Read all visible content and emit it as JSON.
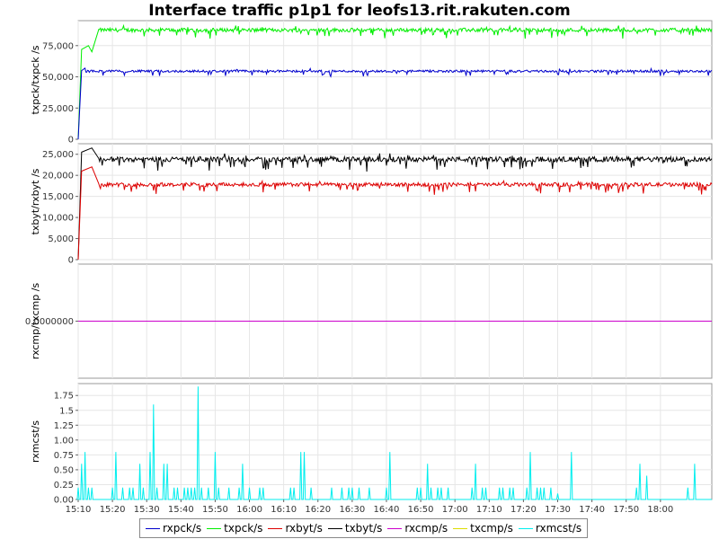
{
  "title": "Interface traffic p1p1 for leofs13.rit.rakuten.com",
  "x_ticks": [
    "15:10",
    "15:20",
    "15:30",
    "15:40",
    "15:50",
    "16:00",
    "16:10",
    "16:20",
    "16:30",
    "16:40",
    "16:50",
    "17:00",
    "17:10",
    "17:20",
    "17:30",
    "17:40",
    "17:50",
    "18:00"
  ],
  "legend": [
    {
      "name": "rxpck/s",
      "color": "#0000cc"
    },
    {
      "name": "txpck/s",
      "color": "#00ee00"
    },
    {
      "name": "rxbyt/s",
      "color": "#dd0000"
    },
    {
      "name": "txbyt/s",
      "color": "#000000"
    },
    {
      "name": "rxcmp/s",
      "color": "#cc00cc"
    },
    {
      "name": "txcmp/s",
      "color": "#dddd00"
    },
    {
      "name": "rxmcst/s",
      "color": "#00eeee"
    }
  ],
  "chart_data": [
    {
      "type": "line",
      "ylabel": "txpck/txpck /s",
      "ylim": [
        0,
        95000
      ],
      "y_ticks": [
        {
          "v": 0,
          "label": "0"
        },
        {
          "v": 25000,
          "label": "25,000"
        },
        {
          "v": 50000,
          "label": "50,000"
        },
        {
          "v": 75000,
          "label": "75,000"
        }
      ],
      "x_range": [
        "15:10",
        "18:15"
      ],
      "series": [
        {
          "name": "txpck/s",
          "color": "#00ee00",
          "base": 87500,
          "noise": 1500,
          "dips": 6000,
          "ramp": [
            [
              "15:10",
              0
            ],
            [
              "15:11",
              72000
            ],
            [
              "15:13",
              75000
            ],
            [
              "15:14",
              70000
            ],
            [
              "15:16",
              88000
            ]
          ]
        },
        {
          "name": "rxpck/s",
          "color": "#0000cc",
          "base": 54500,
          "noise": 900,
          "dips": 4000,
          "ramp": [
            [
              "15:10",
              0
            ],
            [
              "15:11",
              55000
            ],
            [
              "15:12",
              57000
            ]
          ]
        }
      ]
    },
    {
      "type": "line",
      "ylabel": "txbyt/rxbyt /s",
      "ylim": [
        0,
        27500
      ],
      "y_ticks": [
        {
          "v": 0,
          "label": "0"
        },
        {
          "v": 5000,
          "label": "5,000"
        },
        {
          "v": 10000,
          "label": "10,000"
        },
        {
          "v": 15000,
          "label": "15,000"
        },
        {
          "v": 20000,
          "label": "20,000"
        },
        {
          "v": 25000,
          "label": "25,000"
        }
      ],
      "x_range": [
        "15:10",
        "18:15"
      ],
      "series": [
        {
          "name": "txbyt/s",
          "color": "#000000",
          "base": 23800,
          "noise": 600,
          "dips": 2500,
          "ramp": [
            [
              "15:10",
              0
            ],
            [
              "15:11",
              25500
            ],
            [
              "15:14",
              26500
            ],
            [
              "15:16",
              24000
            ]
          ]
        },
        {
          "name": "rxbyt/s",
          "color": "#dd0000",
          "base": 17800,
          "noise": 450,
          "dips": 2000,
          "ramp": [
            [
              "15:10",
              0
            ],
            [
              "15:11",
              21000
            ],
            [
              "15:14",
              22000
            ],
            [
              "15:16",
              18000
            ]
          ]
        }
      ]
    },
    {
      "type": "line",
      "ylabel": "rxcmp/txcmp /s",
      "ylim": [
        -1,
        1
      ],
      "y_ticks": [
        {
          "v": 0,
          "label": "0.0000000"
        }
      ],
      "x_range": [
        "15:10",
        "18:15"
      ],
      "series": [
        {
          "name": "rxcmp/s",
          "color": "#cc00cc",
          "constant": 0
        }
      ]
    },
    {
      "type": "line",
      "ylabel": "rxmcst/s",
      "ylim": [
        0,
        1.95
      ],
      "y_ticks": [
        {
          "v": 0,
          "label": "0.00"
        },
        {
          "v": 0.25,
          "label": "0.25"
        },
        {
          "v": 0.5,
          "label": "0.50"
        },
        {
          "v": 0.75,
          "label": "0.75"
        },
        {
          "v": 1.0,
          "label": "1.00"
        },
        {
          "v": 1.25,
          "label": "1.25"
        },
        {
          "v": 1.5,
          "label": "1.5"
        },
        {
          "v": 1.75,
          "label": "1.75"
        }
      ],
      "x_range": [
        "15:10",
        "18:15"
      ],
      "series": [
        {
          "name": "rxmcst/s",
          "color": "#00eeee",
          "spikes": [
            [
              "15:10",
              0.2
            ],
            [
              "15:11",
              0.6
            ],
            [
              "15:12",
              0.8
            ],
            [
              "15:13",
              0.2
            ],
            [
              "15:14",
              0.2
            ],
            [
              "15:20",
              0.2
            ],
            [
              "15:21",
              0.8
            ],
            [
              "15:23",
              0.2
            ],
            [
              "15:25",
              0.2
            ],
            [
              "15:26",
              0.2
            ],
            [
              "15:28",
              0.6
            ],
            [
              "15:29",
              0.2
            ],
            [
              "15:31",
              0.8
            ],
            [
              "15:32",
              1.6
            ],
            [
              "15:33",
              0.2
            ],
            [
              "15:35",
              0.6
            ],
            [
              "15:36",
              0.6
            ],
            [
              "15:38",
              0.2
            ],
            [
              "15:39",
              0.2
            ],
            [
              "15:41",
              0.2
            ],
            [
              "15:42",
              0.2
            ],
            [
              "15:43",
              0.2
            ],
            [
              "15:44",
              0.2
            ],
            [
              "15:45",
              1.9
            ],
            [
              "15:46",
              0.2
            ],
            [
              "15:48",
              0.2
            ],
            [
              "15:50",
              0.8
            ],
            [
              "15:51",
              0.2
            ],
            [
              "15:54",
              0.2
            ],
            [
              "15:57",
              0.2
            ],
            [
              "15:58",
              0.6
            ],
            [
              "16:00",
              0.2
            ],
            [
              "16:03",
              0.2
            ],
            [
              "16:04",
              0.2
            ],
            [
              "16:12",
              0.2
            ],
            [
              "16:13",
              0.2
            ],
            [
              "16:15",
              0.8
            ],
            [
              "16:16",
              0.8
            ],
            [
              "16:18",
              0.2
            ],
            [
              "16:24",
              0.2
            ],
            [
              "16:27",
              0.2
            ],
            [
              "16:29",
              0.2
            ],
            [
              "16:30",
              0.2
            ],
            [
              "16:32",
              0.2
            ],
            [
              "16:35",
              0.2
            ],
            [
              "16:40",
              0.2
            ],
            [
              "16:41",
              0.8
            ],
            [
              "16:49",
              0.2
            ],
            [
              "16:50",
              0.2
            ],
            [
              "16:52",
              0.6
            ],
            [
              "16:53",
              0.2
            ],
            [
              "16:55",
              0.2
            ],
            [
              "16:56",
              0.2
            ],
            [
              "16:58",
              0.2
            ],
            [
              "17:05",
              0.2
            ],
            [
              "17:06",
              0.6
            ],
            [
              "17:08",
              0.2
            ],
            [
              "17:09",
              0.2
            ],
            [
              "17:13",
              0.2
            ],
            [
              "17:14",
              0.2
            ],
            [
              "17:16",
              0.2
            ],
            [
              "17:17",
              0.2
            ],
            [
              "17:21",
              0.2
            ],
            [
              "17:22",
              0.8
            ],
            [
              "17:24",
              0.2
            ],
            [
              "17:25",
              0.2
            ],
            [
              "17:26",
              0.2
            ],
            [
              "17:28",
              0.2
            ],
            [
              "17:30",
              0.1
            ],
            [
              "17:34",
              0.8
            ],
            [
              "17:53",
              0.2
            ],
            [
              "17:54",
              0.6
            ],
            [
              "17:56",
              0.4
            ],
            [
              "18:08",
              0.2
            ],
            [
              "18:10",
              0.6
            ]
          ]
        }
      ]
    }
  ]
}
